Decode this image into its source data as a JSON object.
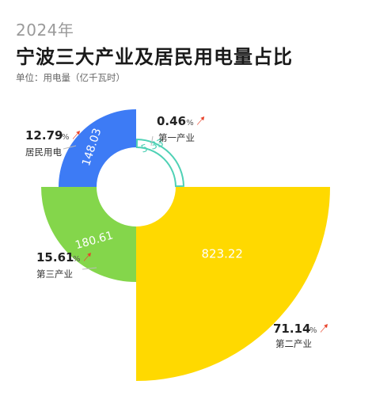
{
  "header": {
    "year": "2024年",
    "title": "宁波三大产业及居民用电量占比",
    "unit": "单位：用电量（亿千瓦时）"
  },
  "colors": {
    "第一产业": "#4fd1b5",
    "第二产业": "#ffd900",
    "第三产业": "#84d64b",
    "居民用电": "#3d7bf5",
    "arrow": "#e8442c",
    "label": "#333333"
  },
  "chart_data": {
    "type": "pie",
    "variant": "nightingale-rose",
    "title": "宁波三大产业及居民用电量占比",
    "unit": "亿千瓦时",
    "slices": [
      {
        "name": "第一产业",
        "value": 5.33,
        "percent": "0.46",
        "pct_unit": "%"
      },
      {
        "name": "第二产业",
        "value": 823.22,
        "percent": "71.14",
        "pct_unit": "%"
      },
      {
        "name": "第三产业",
        "value": 180.61,
        "percent": "15.61",
        "pct_unit": "%"
      },
      {
        "name": "居民用电",
        "value": 148.03,
        "percent": "12.79",
        "pct_unit": "%"
      }
    ]
  }
}
